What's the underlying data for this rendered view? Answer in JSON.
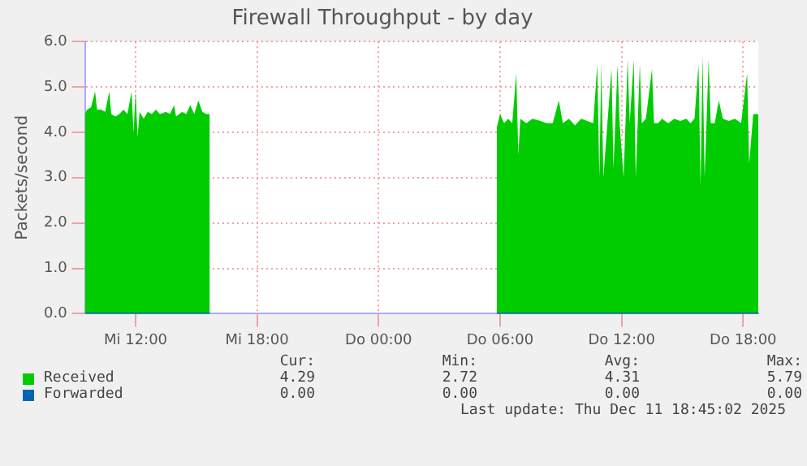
{
  "chart_data": {
    "type": "area",
    "title": "Firewall Throughput - by day",
    "ylabel": "Packets/second",
    "xlim": [
      "2025-12-10T09:30",
      "2025-12-11T18:45"
    ],
    "xticks": [
      {
        "value": "2025-12-10T12:00",
        "label": "Mi 12:00"
      },
      {
        "value": "2025-12-10T18:00",
        "label": "Mi 18:00"
      },
      {
        "value": "2025-12-11T00:00",
        "label": "Do 00:00"
      },
      {
        "value": "2025-12-11T06:00",
        "label": "Do 06:00"
      },
      {
        "value": "2025-12-11T12:00",
        "label": "Do 12:00"
      },
      {
        "value": "2025-12-11T18:00",
        "label": "Do 18:00"
      }
    ],
    "ylim": [
      0,
      6
    ],
    "yticks": [
      {
        "value": 0,
        "label": "0.0"
      },
      {
        "value": 1,
        "label": "1.0"
      },
      {
        "value": 2,
        "label": "2.0"
      },
      {
        "value": 3,
        "label": "3.0"
      },
      {
        "value": 4,
        "label": "4.0"
      },
      {
        "value": 5,
        "label": "5.0"
      },
      {
        "value": 6,
        "label": "6.0"
      }
    ],
    "grid": true,
    "legend": "bottom left",
    "series": [
      {
        "name": "Received",
        "color": "#00cc00",
        "x": [
          "2025-12-10T09:30",
          "2025-12-10T09:36",
          "2025-12-10T09:48",
          "2025-12-10T10:00",
          "2025-12-10T10:06",
          "2025-12-10T10:18",
          "2025-12-10T10:30",
          "2025-12-10T10:42",
          "2025-12-10T10:48",
          "2025-12-10T11:00",
          "2025-12-10T11:12",
          "2025-12-10T11:24",
          "2025-12-10T11:36",
          "2025-12-10T11:48",
          "2025-12-10T11:54",
          "2025-12-10T12:00",
          "2025-12-10T12:06",
          "2025-12-10T12:12",
          "2025-12-10T12:24",
          "2025-12-10T12:36",
          "2025-12-10T12:48",
          "2025-12-10T13:00",
          "2025-12-10T13:12",
          "2025-12-10T13:30",
          "2025-12-10T13:42",
          "2025-12-10T13:54",
          "2025-12-10T14:00",
          "2025-12-10T14:18",
          "2025-12-10T14:30",
          "2025-12-10T14:42",
          "2025-12-10T14:54",
          "2025-12-10T15:06",
          "2025-12-10T15:18",
          "2025-12-10T15:30",
          "2025-12-10T15:40",
          "2025-12-10T22:00",
          "2025-12-11T05:50",
          "2025-12-11T06:00",
          "2025-12-11T06:12",
          "2025-12-11T06:24",
          "2025-12-11T06:36",
          "2025-12-11T06:48",
          "2025-12-11T06:54",
          "2025-12-11T07:00",
          "2025-12-11T07:18",
          "2025-12-11T07:36",
          "2025-12-11T08:00",
          "2025-12-11T08:18",
          "2025-12-11T08:36",
          "2025-12-11T08:54",
          "2025-12-11T09:06",
          "2025-12-11T09:24",
          "2025-12-11T09:42",
          "2025-12-11T10:00",
          "2025-12-11T10:18",
          "2025-12-11T10:36",
          "2025-12-11T10:48",
          "2025-12-11T10:54",
          "2025-12-11T11:00",
          "2025-12-11T11:06",
          "2025-12-11T11:18",
          "2025-12-11T11:30",
          "2025-12-11T11:36",
          "2025-12-11T11:48",
          "2025-12-11T11:54",
          "2025-12-11T12:06",
          "2025-12-11T12:18",
          "2025-12-11T12:24",
          "2025-12-11T12:36",
          "2025-12-11T12:42",
          "2025-12-11T12:54",
          "2025-12-11T13:00",
          "2025-12-11T13:12",
          "2025-12-11T13:30",
          "2025-12-11T13:36",
          "2025-12-11T13:48",
          "2025-12-11T14:00",
          "2025-12-11T14:18",
          "2025-12-11T14:36",
          "2025-12-11T14:54",
          "2025-12-11T15:12",
          "2025-12-11T15:24",
          "2025-12-11T15:36",
          "2025-12-11T15:48",
          "2025-12-11T15:54",
          "2025-12-11T16:00",
          "2025-12-11T16:06",
          "2025-12-11T16:18",
          "2025-12-11T16:24",
          "2025-12-11T16:36",
          "2025-12-11T16:48",
          "2025-12-11T17:00",
          "2025-12-11T17:18",
          "2025-12-11T17:36",
          "2025-12-11T17:54",
          "2025-12-11T18:12",
          "2025-12-11T18:18",
          "2025-12-11T18:30",
          "2025-12-11T18:45"
        ],
        "values": [
          4.4,
          4.5,
          4.55,
          4.9,
          4.5,
          4.5,
          4.45,
          4.9,
          4.4,
          4.35,
          4.4,
          4.5,
          4.4,
          4.9,
          4.0,
          4.9,
          3.9,
          4.45,
          4.3,
          4.45,
          4.4,
          4.5,
          4.4,
          4.45,
          4.4,
          4.6,
          4.35,
          4.45,
          4.4,
          4.6,
          4.4,
          4.7,
          4.45,
          4.4,
          4.4,
          null,
          4.1,
          4.4,
          4.2,
          4.3,
          4.2,
          5.3,
          3.5,
          4.3,
          4.2,
          4.3,
          4.25,
          4.2,
          4.2,
          4.7,
          4.2,
          4.3,
          4.15,
          4.3,
          4.25,
          4.2,
          5.5,
          3.0,
          5.5,
          3.0,
          4.2,
          5.4,
          3.2,
          5.5,
          4.2,
          3.0,
          5.6,
          4.2,
          5.6,
          3.0,
          5.5,
          4.2,
          4.3,
          5.4,
          4.2,
          4.2,
          4.3,
          4.2,
          4.3,
          4.25,
          4.3,
          4.2,
          4.3,
          5.5,
          2.8,
          5.7,
          3.0,
          5.6,
          4.2,
          4.2,
          4.7,
          4.3,
          4.25,
          4.3,
          4.2,
          5.3,
          3.3,
          4.4,
          4.4
        ]
      },
      {
        "name": "Forwarded",
        "color": "#0066b3",
        "type": "line",
        "x": [
          "2025-12-10T09:30",
          "2025-12-10T15:40",
          "2025-12-10T22:00",
          "2025-12-11T05:50",
          "2025-12-11T18:45"
        ],
        "values": [
          0,
          0,
          null,
          0,
          0
        ]
      }
    ],
    "annotations": [
      "Cur:",
      "Min:",
      "Avg:",
      "Max:",
      "4.29",
      "2.72",
      "4.31",
      "5.79",
      "0.00",
      "0.00",
      "0.00",
      "0.00",
      "Last update: Thu Dec 11 18:45:02 2025"
    ]
  }
}
